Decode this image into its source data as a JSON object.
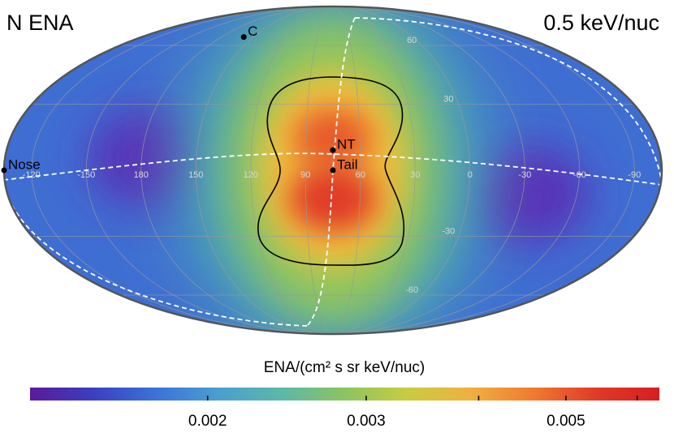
{
  "chart_data": {
    "type": "skymap",
    "projection": "mollweide",
    "center_lon": 75,
    "title": "N ENA",
    "subtitle": "0.5 keV/nuc",
    "lon_ticks": [
      -120,
      -150,
      180,
      150,
      120,
      90,
      60,
      30,
      0,
      -30,
      -60,
      -90
    ],
    "lat_ticks": [
      60,
      30,
      -30,
      -60
    ],
    "grid": true,
    "points": [
      {
        "label": "C",
        "lon": 159,
        "lat": 65
      },
      {
        "label": "NT",
        "lon": 75,
        "lat": 9
      },
      {
        "label": "Tail",
        "lon": 75,
        "lat": 0
      },
      {
        "label": "Nose",
        "lon": 255,
        "lat": 0
      }
    ],
    "colorbar": {
      "label": "ENA/(cm² s sr keV/nuc)",
      "log": true,
      "lim": [
        0.00127,
        0.00635
      ],
      "ticks": [
        0.002,
        0.003,
        0.005
      ],
      "minor_ticks": [
        0.004,
        0.006
      ],
      "colors": [
        "#5b1a9a",
        "#3b3fc0",
        "#3a73d8",
        "#4a9fd0",
        "#5cb8a8",
        "#8cc460",
        "#c8cc40",
        "#f0b040",
        "#f07a30",
        "#e03a26",
        "#d81e20"
      ]
    }
  }
}
